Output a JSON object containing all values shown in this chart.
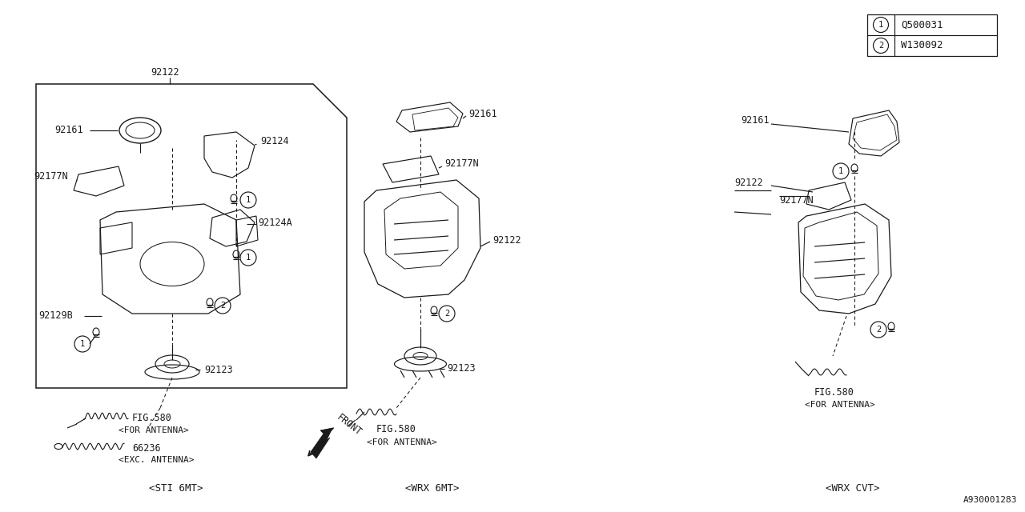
{
  "bg_color": "#ffffff",
  "lc": "#1a1a1a",
  "part_ref1": "Q500031",
  "part_ref2": "W130092",
  "diagram_id": "A930001283",
  "s1_label": "<STI 6MT>",
  "s2_label": "<WRX 6MT>",
  "s3_label": "<WRX CVT>",
  "front_label": "FRONT",
  "fig580": "FIG.580",
  "for_ant": "<FOR ANTENNA>",
  "exc_ant": "<EXC. ANTENNA>",
  "p92122": "92122",
  "p92161": "92161",
  "p92177n": "92177N",
  "p92124": "92124",
  "p92124a": "92124A",
  "p92129b": "92129B",
  "p92123": "92123",
  "p66236": "66236"
}
